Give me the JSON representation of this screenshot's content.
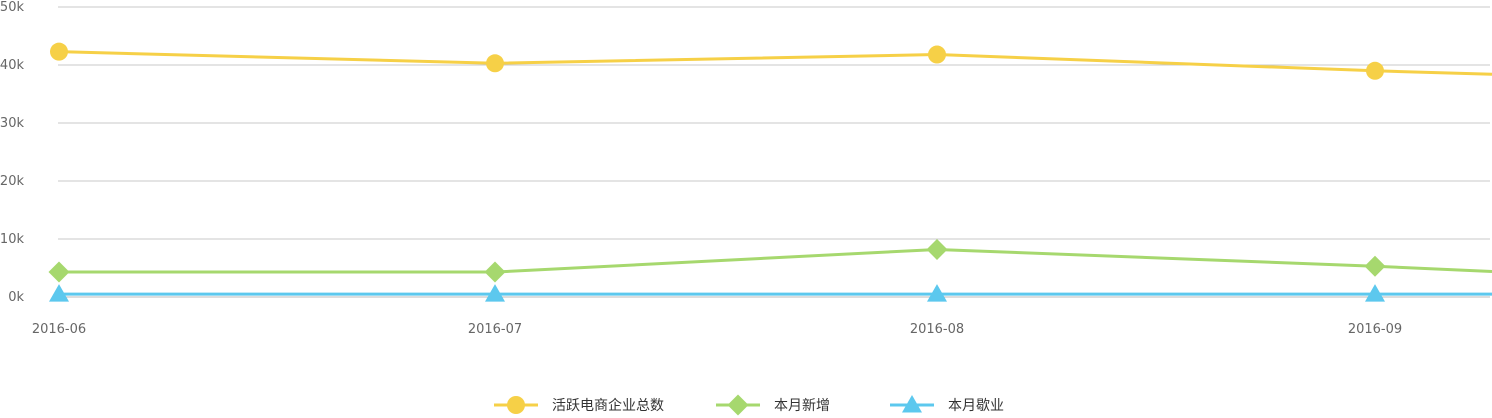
{
  "chart_data": {
    "type": "line",
    "title": "",
    "xlabel": "",
    "ylabel": "",
    "categories": [
      "2016-06",
      "2016-07",
      "2016-08",
      "2016-09"
    ],
    "y_ticks": [
      "0k",
      "10k",
      "20k",
      "30k",
      "40k",
      "50k"
    ],
    "ylim": [
      0,
      50000
    ],
    "grid": "horizontal",
    "legend_position": "bottom",
    "x_extends_past_last_category": true,
    "series": [
      {
        "name": "活跃电商企业总数",
        "color": "#F6D047",
        "marker": "circle",
        "values": [
          42300,
          40300,
          41800,
          39000
        ],
        "trailing_value": 38400
      },
      {
        "name": "本月新增",
        "color": "#A6D86E",
        "marker": "diamond",
        "values": [
          4300,
          4300,
          8200,
          5300
        ],
        "trailing_value": 4400
      },
      {
        "name": "本月歇业",
        "color": "#5CC8EE",
        "marker": "triangle",
        "values": [
          500,
          500,
          500,
          500
        ],
        "trailing_value": 500
      }
    ]
  }
}
